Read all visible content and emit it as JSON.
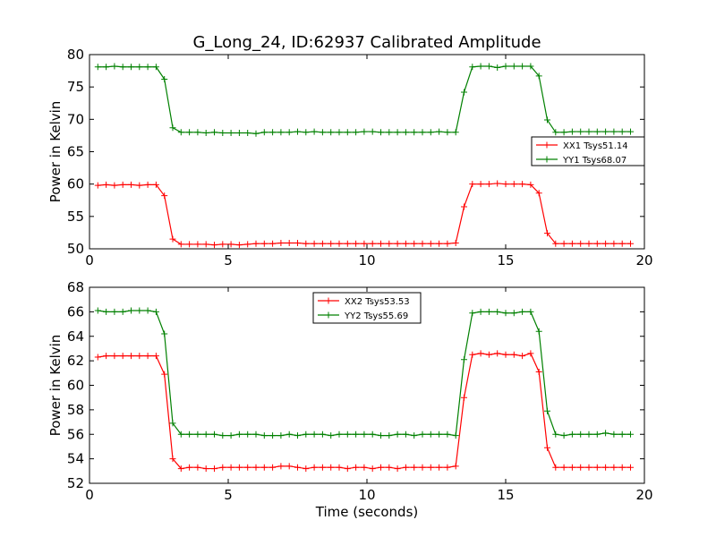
{
  "figure_title": "G_Long_24, ID:62937 Calibrated Amplitude",
  "chart_data": [
    {
      "type": "line",
      "title": "G_Long_24, ID:62937 Calibrated Amplitude",
      "xlabel": "",
      "ylabel": "Power in Kelvin",
      "xlim": [
        0,
        20
      ],
      "ylim": [
        50,
        80
      ],
      "xticks": [
        "0",
        "5",
        "10",
        "15",
        "20"
      ],
      "yticks": [
        "50",
        "55",
        "60",
        "65",
        "70",
        "75",
        "80"
      ],
      "legend_position": "center-right",
      "grid": false,
      "x": [
        0.3,
        0.6,
        0.9,
        1.2,
        1.5,
        1.8,
        2.1,
        2.4,
        2.7,
        3.0,
        3.3,
        3.6,
        3.9,
        4.2,
        4.5,
        4.8,
        5.1,
        5.4,
        5.7,
        6.0,
        6.3,
        6.6,
        6.9,
        7.2,
        7.5,
        7.8,
        8.1,
        8.4,
        8.7,
        9.0,
        9.3,
        9.6,
        9.9,
        10.2,
        10.5,
        10.8,
        11.1,
        11.4,
        11.7,
        12.0,
        12.3,
        12.6,
        12.9,
        13.2,
        13.5,
        13.8,
        14.1,
        14.4,
        14.7,
        15.0,
        15.3,
        15.6,
        15.9,
        16.2,
        16.5,
        16.8,
        17.1,
        17.4,
        17.7,
        18.0,
        18.3,
        18.6,
        18.9,
        19.2,
        19.5
      ],
      "series": [
        {
          "name": "XX1 Tsys51.14",
          "color": "#ff0000",
          "values": [
            59.8,
            59.9,
            59.8,
            59.9,
            59.9,
            59.8,
            59.9,
            59.9,
            58.2,
            51.5,
            50.7,
            50.7,
            50.7,
            50.7,
            50.6,
            50.7,
            50.7,
            50.6,
            50.7,
            50.8,
            50.8,
            50.8,
            50.9,
            50.9,
            50.9,
            50.8,
            50.8,
            50.8,
            50.8,
            50.8,
            50.8,
            50.8,
            50.8,
            50.8,
            50.8,
            50.8,
            50.8,
            50.8,
            50.8,
            50.8,
            50.8,
            50.8,
            50.8,
            50.9,
            56.5,
            60.0,
            60.0,
            60.0,
            60.1,
            60.0,
            60.0,
            60.0,
            59.9,
            58.6,
            52.4,
            50.8,
            50.8,
            50.8,
            50.8,
            50.8,
            50.8,
            50.8,
            50.8,
            50.8,
            50.8
          ]
        },
        {
          "name": "YY1 Tsys68.07",
          "color": "#008000",
          "values": [
            78.1,
            78.1,
            78.2,
            78.1,
            78.1,
            78.1,
            78.1,
            78.1,
            76.2,
            68.7,
            68.0,
            68.0,
            68.0,
            67.9,
            68.0,
            67.9,
            67.9,
            67.9,
            67.9,
            67.8,
            68.0,
            68.0,
            68.0,
            68.0,
            68.1,
            68.0,
            68.1,
            68.0,
            68.0,
            68.0,
            68.0,
            68.0,
            68.1,
            68.1,
            68.0,
            68.0,
            68.0,
            68.0,
            68.0,
            68.0,
            68.0,
            68.1,
            68.0,
            68.0,
            74.2,
            78.1,
            78.2,
            78.2,
            78.0,
            78.2,
            78.2,
            78.2,
            78.2,
            76.7,
            69.9,
            68.0,
            68.0,
            68.1,
            68.1,
            68.1,
            68.1,
            68.1,
            68.1,
            68.1,
            68.1
          ]
        }
      ]
    },
    {
      "type": "line",
      "title": "",
      "xlabel": "Time (seconds)",
      "ylabel": "Power in Kelvin",
      "xlim": [
        0,
        20
      ],
      "ylim": [
        52,
        68
      ],
      "xticks": [
        "0",
        "5",
        "10",
        "15",
        "20"
      ],
      "yticks": [
        "52",
        "54",
        "56",
        "58",
        "60",
        "62",
        "64",
        "66",
        "68"
      ],
      "legend_position": "upper-center",
      "grid": false,
      "x": [
        0.3,
        0.6,
        0.9,
        1.2,
        1.5,
        1.8,
        2.1,
        2.4,
        2.7,
        3.0,
        3.3,
        3.6,
        3.9,
        4.2,
        4.5,
        4.8,
        5.1,
        5.4,
        5.7,
        6.0,
        6.3,
        6.6,
        6.9,
        7.2,
        7.5,
        7.8,
        8.1,
        8.4,
        8.7,
        9.0,
        9.3,
        9.6,
        9.9,
        10.2,
        10.5,
        10.8,
        11.1,
        11.4,
        11.7,
        12.0,
        12.3,
        12.6,
        12.9,
        13.2,
        13.5,
        13.8,
        14.1,
        14.4,
        14.7,
        15.0,
        15.3,
        15.6,
        15.9,
        16.2,
        16.5,
        16.8,
        17.1,
        17.4,
        17.7,
        18.0,
        18.3,
        18.6,
        18.9,
        19.2,
        19.5
      ],
      "series": [
        {
          "name": "XX2 Tsys53.53",
          "color": "#ff0000",
          "values": [
            62.3,
            62.4,
            62.4,
            62.4,
            62.4,
            62.4,
            62.4,
            62.4,
            60.9,
            54.0,
            53.2,
            53.3,
            53.3,
            53.2,
            53.2,
            53.3,
            53.3,
            53.3,
            53.3,
            53.3,
            53.3,
            53.3,
            53.4,
            53.4,
            53.3,
            53.2,
            53.3,
            53.3,
            53.3,
            53.3,
            53.2,
            53.3,
            53.3,
            53.2,
            53.3,
            53.3,
            53.2,
            53.3,
            53.3,
            53.3,
            53.3,
            53.3,
            53.3,
            53.4,
            59.0,
            62.5,
            62.6,
            62.5,
            62.6,
            62.5,
            62.5,
            62.4,
            62.6,
            61.1,
            54.9,
            53.3,
            53.3,
            53.3,
            53.3,
            53.3,
            53.3,
            53.3,
            53.3,
            53.3,
            53.3
          ]
        },
        {
          "name": "YY2 Tsys55.69",
          "color": "#008000",
          "values": [
            66.1,
            66.0,
            66.0,
            66.0,
            66.1,
            66.1,
            66.1,
            66.0,
            64.2,
            56.9,
            56.0,
            56.0,
            56.0,
            56.0,
            56.0,
            55.9,
            55.9,
            56.0,
            56.0,
            56.0,
            55.9,
            55.9,
            55.9,
            56.0,
            55.9,
            56.0,
            56.0,
            56.0,
            55.9,
            56.0,
            56.0,
            56.0,
            56.0,
            56.0,
            55.9,
            55.9,
            56.0,
            56.0,
            55.9,
            56.0,
            56.0,
            56.0,
            56.0,
            55.9,
            62.1,
            65.9,
            66.0,
            66.0,
            66.0,
            65.9,
            65.9,
            66.0,
            66.0,
            64.4,
            57.9,
            56.0,
            55.9,
            56.0,
            56.0,
            56.0,
            56.0,
            56.1,
            56.0,
            56.0,
            56.0
          ]
        }
      ]
    }
  ]
}
